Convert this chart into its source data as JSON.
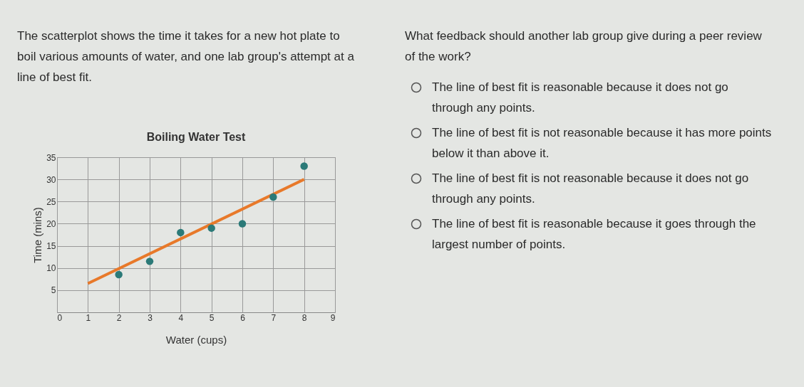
{
  "chart_data": {
    "type": "scatter",
    "title": "Boiling Water Test",
    "xlabel": "Water (cups)",
    "ylabel": "Time (mins)",
    "x": [
      2,
      3,
      4,
      5,
      6,
      7,
      8
    ],
    "series": [
      {
        "color": "#2b7a78",
        "marker": "circle",
        "values": [
          8.5,
          11.5,
          18,
          19,
          20,
          26,
          33
        ]
      },
      {
        "type": "line",
        "color": "#e8792a",
        "x": [
          1,
          8
        ],
        "values": [
          6.5,
          30
        ]
      }
    ],
    "xlim": [
      0,
      9
    ],
    "xticks": [
      0,
      1,
      2,
      3,
      4,
      5,
      6,
      7,
      8,
      9
    ],
    "ylim": [
      0,
      35
    ],
    "yticks": [
      5,
      10,
      15,
      20,
      25,
      30,
      35
    ],
    "grid": true,
    "annotations": [
      "The scatterplot shows the time it takes for a new hot plate to boil various amounts of water, and one lab group's attempt at a line of best fit.",
      "What feedback should another lab group give during a peer review of the work?",
      "The line of best fit is reasonable because it does not go through any points.",
      "The line of best fit is not reasonable because it has more points below it than above it.",
      "The line of best fit is not reasonable because it does not go through any points.",
      "The line of best fit is reasonable because it goes through the largest number of points."
    ]
  }
}
